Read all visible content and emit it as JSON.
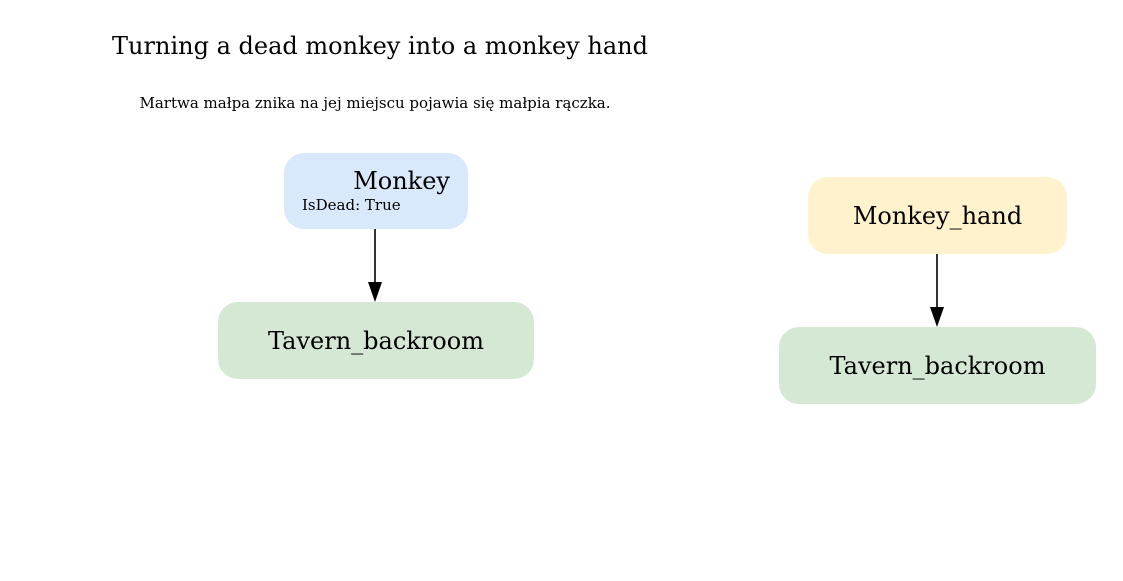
{
  "diagram": {
    "title": "Turning a dead monkey into a monkey hand",
    "subtitle": "Martwa małpa znika na jej miejscu pojawia się małpia rączka.",
    "before": {
      "entity": {
        "label": "Monkey",
        "property": "IsDead: True",
        "fill": "#dae8fc"
      },
      "location": {
        "label": "Tavern_backroom",
        "fill": "#d5e8d4"
      }
    },
    "after": {
      "entity": {
        "label": "Monkey_hand",
        "fill": "#fff2cc"
      },
      "location": {
        "label": "Tavern_backroom",
        "fill": "#d5e8d4"
      }
    },
    "edge_color": "#000000"
  }
}
